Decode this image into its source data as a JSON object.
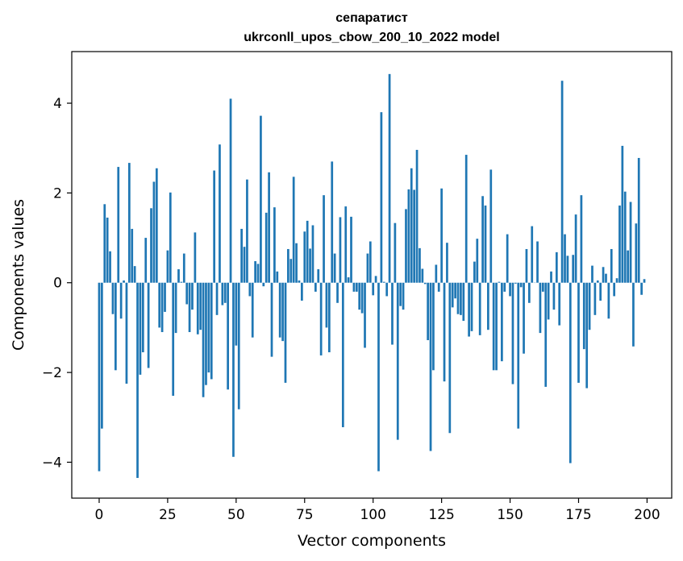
{
  "chart_data": {
    "type": "bar",
    "title": "сепаратист",
    "subtitle": "ukrconll_upos_cbow_200_10_2022 model",
    "xlabel": "Vector components",
    "ylabel": "Components values",
    "xlim": [
      -10,
      209
    ],
    "ylim": [
      -4.8,
      5.15
    ],
    "xticks": [
      0,
      25,
      50,
      75,
      100,
      125,
      150,
      175,
      200
    ],
    "xtick_labels": [
      "0",
      "25",
      "50",
      "75",
      "100",
      "125",
      "150",
      "175",
      "200"
    ],
    "yticks": [
      -4,
      -2,
      0,
      2,
      4
    ],
    "ytick_labels": [
      "−4",
      "−2",
      "0",
      "2",
      "4"
    ],
    "grid": false,
    "bar_color": "#1f77b4",
    "x": [
      0,
      1,
      2,
      3,
      4,
      5,
      6,
      7,
      8,
      9,
      10,
      11,
      12,
      13,
      14,
      15,
      16,
      17,
      18,
      19,
      20,
      21,
      22,
      23,
      24,
      25,
      26,
      27,
      28,
      29,
      30,
      31,
      32,
      33,
      34,
      35,
      36,
      37,
      38,
      39,
      40,
      41,
      42,
      43,
      44,
      45,
      46,
      47,
      48,
      49,
      50,
      51,
      52,
      53,
      54,
      55,
      56,
      57,
      58,
      59,
      60,
      61,
      62,
      63,
      64,
      65,
      66,
      67,
      68,
      69,
      70,
      71,
      72,
      73,
      74,
      75,
      76,
      77,
      78,
      79,
      80,
      81,
      82,
      83,
      84,
      85,
      86,
      87,
      88,
      89,
      90,
      91,
      92,
      93,
      94,
      95,
      96,
      97,
      98,
      99,
      100,
      101,
      102,
      103,
      104,
      105,
      106,
      107,
      108,
      109,
      110,
      111,
      112,
      113,
      114,
      115,
      116,
      117,
      118,
      119,
      120,
      121,
      122,
      123,
      124,
      125,
      126,
      127,
      128,
      129,
      130,
      131,
      132,
      133,
      134,
      135,
      136,
      137,
      138,
      139,
      140,
      141,
      142,
      143,
      144,
      145,
      146,
      147,
      148,
      149,
      150,
      151,
      152,
      153,
      154,
      155,
      156,
      157,
      158,
      159,
      160,
      161,
      162,
      163,
      164,
      165,
      166,
      167,
      168,
      169,
      170,
      171,
      172,
      173,
      174,
      175,
      176,
      177,
      178,
      179,
      180,
      181,
      182,
      183,
      184,
      185,
      186,
      187,
      188,
      189,
      190,
      191,
      192,
      193,
      194,
      195,
      196,
      197,
      198,
      199
    ],
    "values": [
      -4.2,
      -3.25,
      1.75,
      1.45,
      0.7,
      -0.7,
      -1.95,
      2.58,
      -0.8,
      0.05,
      -2.25,
      2.67,
      1.2,
      0.37,
      -4.35,
      -2.05,
      -1.55,
      1.0,
      -1.9,
      1.66,
      2.25,
      2.55,
      -1.0,
      -1.1,
      -0.65,
      0.72,
      2.01,
      -2.52,
      -1.12,
      0.3,
      0.02,
      0.65,
      -0.48,
      -1.1,
      -0.6,
      1.12,
      -1.15,
      -1.05,
      -2.55,
      -2.28,
      -2.0,
      -2.15,
      2.5,
      -0.72,
      3.08,
      -0.5,
      -0.45,
      -2.38,
      4.1,
      -3.88,
      -1.4,
      -2.82,
      1.2,
      0.8,
      2.3,
      -0.3,
      -1.22,
      0.48,
      0.42,
      3.72,
      -0.08,
      1.56,
      2.46,
      -1.65,
      1.68,
      0.25,
      -1.22,
      -1.3,
      -2.23,
      0.75,
      0.53,
      2.36,
      0.88,
      0.05,
      -0.4,
      1.14,
      1.38,
      0.76,
      1.28,
      -0.2,
      0.3,
      -1.62,
      1.95,
      -1.0,
      -1.55,
      2.7,
      0.65,
      -0.45,
      1.46,
      -3.22,
      1.7,
      0.12,
      1.47,
      -0.2,
      -0.2,
      -0.6,
      -0.68,
      -1.45,
      0.65,
      0.92,
      -0.28,
      0.15,
      -4.2,
      3.8,
      0.02,
      -0.3,
      4.65,
      -1.38,
      1.33,
      -3.5,
      -0.52,
      -0.6,
      1.64,
      2.08,
      2.55,
      2.07,
      2.96,
      0.77,
      0.31,
      -0.03,
      -1.28,
      -3.75,
      -1.95,
      0.4,
      -0.2,
      2.1,
      -2.2,
      0.89,
      -3.35,
      -0.55,
      -0.35,
      -0.7,
      -0.72,
      -0.85,
      2.85,
      -1.2,
      -1.08,
      0.47,
      0.98,
      -1.17,
      1.93,
      1.72,
      -1.05,
      2.52,
      -1.95,
      -1.95,
      0.02,
      -1.75,
      -0.2,
      1.08,
      -0.3,
      -2.26,
      -0.02,
      -3.25,
      -0.1,
      -1.58,
      0.75,
      -0.45,
      1.26,
      0.0,
      0.92,
      -1.12,
      -0.2,
      -2.32,
      -0.82,
      0.25,
      -0.6,
      0.68,
      -0.95,
      4.5,
      1.08,
      0.6,
      -4.02,
      0.62,
      1.52,
      -2.23,
      1.95,
      -1.48,
      -2.35,
      -1.05,
      0.38,
      -0.72,
      0.05,
      -0.4,
      0.35,
      0.2,
      -0.8,
      0.75,
      -0.3,
      0.1,
      1.72,
      3.05,
      2.03,
      0.72,
      1.8,
      -1.42,
      1.32,
      2.78,
      -0.27,
      0.08
    ]
  }
}
